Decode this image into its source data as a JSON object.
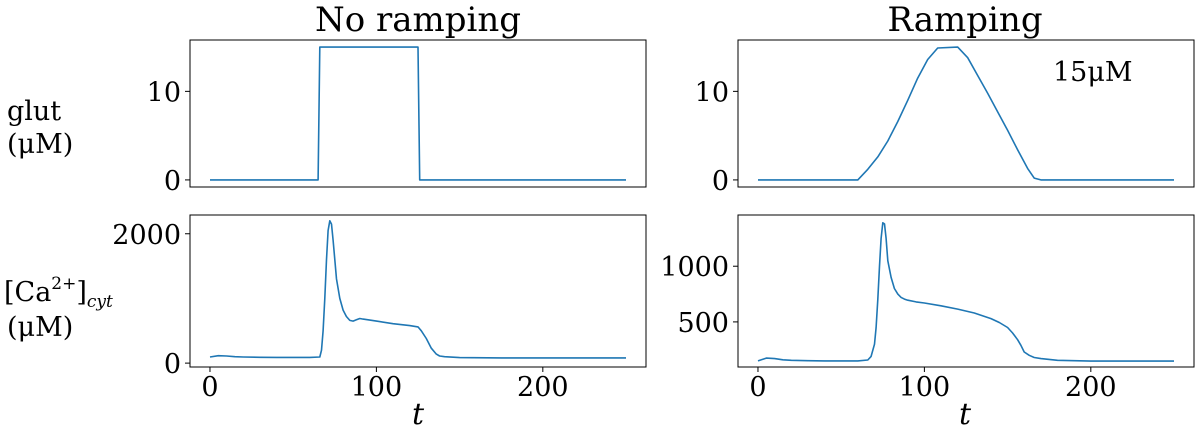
{
  "chart_data": [
    {
      "type": "line",
      "title": "No ramping",
      "ylabel_lines": [
        "glut",
        "(μM)"
      ],
      "xlabel": "",
      "xlim": [
        -12,
        262
      ],
      "ylim": [
        -0.8,
        15.8
      ],
      "xticks": [],
      "yticks": [
        0,
        10
      ],
      "annotation": "",
      "series": [
        {
          "x": [
            0,
            65,
            66,
            125,
            126,
            250
          ],
          "y": [
            0,
            0,
            15,
            15,
            0,
            0
          ]
        }
      ]
    },
    {
      "type": "line",
      "title": "Ramping",
      "xlabel": "",
      "xlim": [
        -12,
        262
      ],
      "ylim": [
        -0.8,
        15.8
      ],
      "xticks": [],
      "yticks": [
        0,
        10
      ],
      "annotation": "15μM",
      "series": [
        {
          "x": [
            0,
            60,
            66,
            72,
            78,
            84,
            90,
            96,
            102,
            108,
            120,
            126,
            132,
            138,
            144,
            150,
            156,
            162,
            166,
            170,
            250
          ],
          "y": [
            0,
            0,
            1.2,
            2.6,
            4.4,
            6.6,
            9.0,
            11.5,
            13.6,
            14.9,
            15,
            13.8,
            11.8,
            9.8,
            7.7,
            5.6,
            3.4,
            1.3,
            0.2,
            0,
            0
          ]
        }
      ]
    },
    {
      "type": "line",
      "title": "",
      "ylabel_base": "[Ca",
      "ylabel_sup": "2+",
      "ylabel_close": "]",
      "ylabel_sub": "cyt",
      "ylabel_line2": "(μM)",
      "xlabel": "t",
      "xlim": [
        -12,
        262
      ],
      "ylim": [
        -60,
        2290
      ],
      "xticks": [
        0,
        100,
        200
      ],
      "yticks": [
        0,
        2000
      ],
      "annotation": "",
      "series": [
        {
          "x": [
            0,
            5,
            10,
            15,
            20,
            30,
            40,
            50,
            60,
            66,
            67,
            68,
            69,
            70,
            71,
            72,
            73,
            74,
            75,
            76,
            78,
            80,
            82,
            84,
            86,
            88,
            90,
            92,
            95,
            100,
            110,
            120,
            125,
            127,
            130,
            133,
            136,
            138,
            141,
            150,
            175,
            200,
            250
          ],
          "y": [
            95,
            115,
            110,
            100,
            95,
            90,
            88,
            88,
            88,
            95,
            200,
            500,
            1000,
            1600,
            2050,
            2200,
            2150,
            1900,
            1600,
            1300,
            1000,
            820,
            720,
            660,
            650,
            670,
            690,
            680,
            670,
            650,
            610,
            580,
            560,
            500,
            380,
            230,
            140,
            110,
            100,
            85,
            80,
            80,
            80
          ]
        }
      ]
    },
    {
      "type": "line",
      "title": "",
      "xlabel": "t",
      "xlim": [
        -12,
        262
      ],
      "ylim": [
        95,
        1460
      ],
      "xticks": [
        0,
        100,
        200
      ],
      "yticks": [
        500,
        1000
      ],
      "annotation": "",
      "series": [
        {
          "x": [
            0,
            5,
            10,
            15,
            20,
            30,
            40,
            50,
            60,
            66,
            68,
            70,
            71,
            72,
            73,
            74,
            75,
            76,
            77,
            78,
            80,
            82,
            84,
            86,
            88,
            90,
            95,
            100,
            110,
            120,
            130,
            140,
            145,
            150,
            153,
            156,
            158,
            160,
            163,
            166,
            170,
            180,
            200,
            250
          ],
          "y": [
            150,
            175,
            170,
            160,
            155,
            152,
            150,
            150,
            150,
            158,
            190,
            300,
            450,
            700,
            1000,
            1250,
            1390,
            1380,
            1250,
            1050,
            900,
            800,
            750,
            720,
            705,
            695,
            680,
            670,
            645,
            615,
            580,
            530,
            495,
            450,
            400,
            340,
            290,
            230,
            200,
            180,
            170,
            155,
            148,
            148
          ]
        }
      ]
    }
  ]
}
